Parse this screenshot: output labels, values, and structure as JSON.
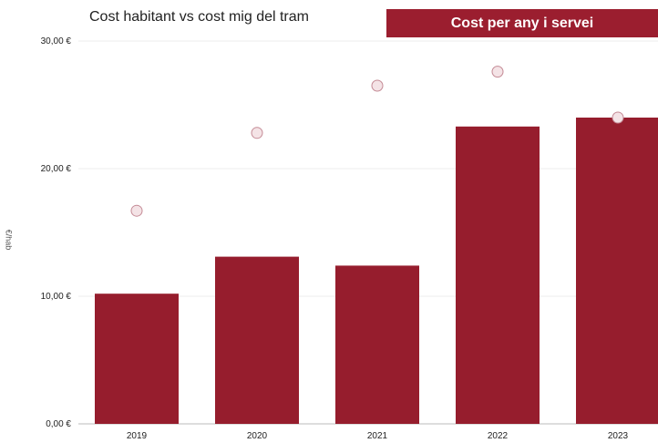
{
  "header": {
    "title": "Cost habitant vs cost mig del tram",
    "banner": "Cost per any i servei",
    "banner_color": "#9b1e2f"
  },
  "chart_data": {
    "type": "bar",
    "categories": [
      "2019",
      "2020",
      "2021",
      "2022",
      "2023"
    ],
    "series": [
      {
        "type": "bar",
        "values": [
          10.2,
          13.1,
          12.4,
          23.3,
          24.0
        ],
        "color": "#961d2d"
      },
      {
        "type": "scatter",
        "values": [
          16.7,
          22.8,
          26.5,
          27.6,
          24.0
        ],
        "color": "#f4e3e6"
      }
    ],
    "ylabel": "€/hab",
    "ylim": [
      0,
      30
    ],
    "yticks": [
      0,
      10,
      20,
      30
    ],
    "ytick_labels": [
      "0,00 €",
      "10,00 €",
      "20,00 €",
      "30,00 €"
    ],
    "grid": true
  }
}
